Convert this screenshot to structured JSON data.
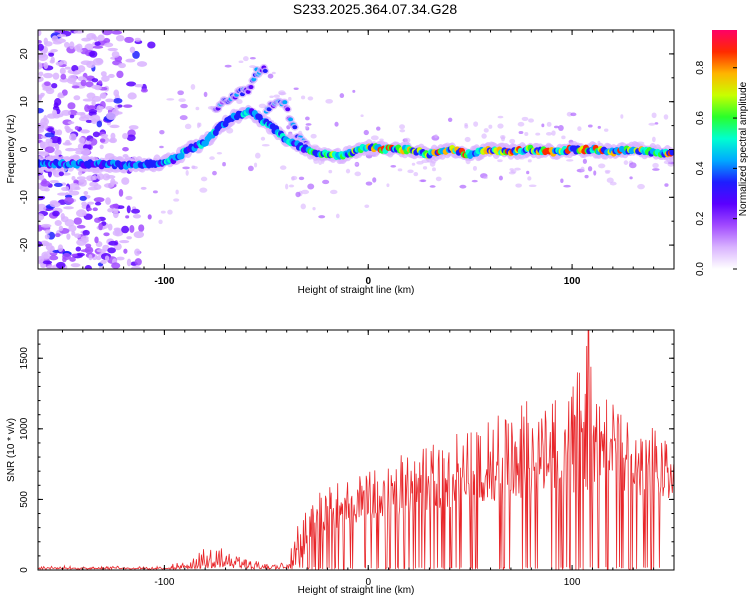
{
  "title": "S233.2025.364.07.34.G28",
  "colors": {
    "snr_line": "#e8262a",
    "frame": "#000000",
    "colormap": [
      "#ffffff",
      "#d9b3ff",
      "#a24bff",
      "#5a00ff",
      "#1e1eff",
      "#00aaff",
      "#00ffd0",
      "#2aff2a",
      "#c8ff00",
      "#ffb400",
      "#ff2a00",
      "#ff0066"
    ]
  },
  "chart_data": [
    {
      "type": "heatmap",
      "title": "S233.2025.364.07.34.G28",
      "xlabel": "Height of straight line (km)",
      "ylabel": "Frequency (Hz)",
      "xlim": [
        -162,
        150
      ],
      "ylim": [
        -25,
        25
      ],
      "xticks": [
        -100,
        0,
        100
      ],
      "yticks": [
        20,
        10,
        0,
        -10,
        -20
      ],
      "colorbar": {
        "label": "Normalized spectral amplitude",
        "range": [
          0,
          0.95
        ],
        "ticks": [
          0,
          0.2,
          0.4,
          0.6,
          0.8
        ]
      },
      "ridge": {
        "description": "main frequency track",
        "x": [
          -162,
          -140,
          -120,
          -105,
          -95,
          -88,
          -80,
          -72,
          -65,
          -58,
          -52,
          -45,
          -40,
          -35,
          -30,
          -25,
          -20,
          -15,
          -10,
          -5,
          0,
          10,
          20,
          30,
          40,
          50,
          60,
          70,
          80,
          90,
          100,
          110,
          120,
          130,
          140,
          150
        ],
        "y": [
          -3,
          -3,
          -3.2,
          -3,
          -2,
          0,
          1.5,
          5,
          7,
          8,
          6,
          4,
          2,
          1,
          0,
          -1,
          -1,
          -1.5,
          -1,
          0,
          0.5,
          0,
          0,
          -1,
          0,
          -1,
          0,
          -0.5,
          0,
          -0.5,
          0,
          0,
          -0.5,
          0,
          -0.5,
          -1
        ],
        "peak_amplitude": 0.95
      },
      "secondary_branches": [
        {
          "x": [
            -75,
            -68,
            -62,
            -58,
            -55,
            -50
          ],
          "y": [
            8,
            11,
            12,
            13,
            16,
            17
          ]
        },
        {
          "x": [
            -50,
            -45,
            -40,
            -38,
            -35,
            -30
          ],
          "y": [
            8,
            10,
            9,
            6,
            3,
            1
          ]
        }
      ],
      "noise_region": {
        "x": [
          -162,
          -105
        ],
        "y": [
          -25,
          25
        ]
      }
    },
    {
      "type": "line",
      "title": "",
      "xlabel": "Height of straight line (km)",
      "ylabel": "SNR (10 * v/v)",
      "xlim": [
        -162,
        150
      ],
      "ylim": [
        0,
        1700
      ],
      "xticks": [
        -100,
        0,
        100
      ],
      "yticks": [
        0,
        500,
        1000,
        1500
      ],
      "series": [
        {
          "name": "SNR",
          "envelope_x": [
            -162,
            -140,
            -120,
            -100,
            -90,
            -85,
            -80,
            -75,
            -70,
            -65,
            -60,
            -55,
            -50,
            -45,
            -40,
            -35,
            -30,
            -25,
            -20,
            -10,
            0,
            10,
            20,
            30,
            40,
            50,
            60,
            70,
            80,
            90,
            100,
            105,
            108,
            110,
            115,
            120,
            130,
            140,
            145,
            150
          ],
          "envelope_y": [
            30,
            28,
            30,
            25,
            70,
            120,
            170,
            160,
            190,
            150,
            100,
            70,
            50,
            40,
            60,
            300,
            500,
            580,
            620,
            650,
            700,
            800,
            850,
            900,
            950,
            1000,
            1100,
            1200,
            1200,
            1250,
            1300,
            1500,
            1700,
            1350,
            1250,
            1200,
            1100,
            1000,
            950,
            900
          ],
          "baseline_y": [
            15,
            12,
            12,
            10,
            15,
            20,
            40,
            35,
            40,
            30,
            25,
            20,
            15,
            10,
            10,
            40,
            120,
            200,
            280,
            320,
            360,
            380,
            400,
            420,
            440,
            460,
            480,
            500,
            500,
            520,
            540,
            550,
            560,
            560,
            540,
            540,
            520,
            500,
            480,
            460
          ],
          "peak": {
            "x": 108,
            "y": 1700
          }
        }
      ]
    }
  ]
}
